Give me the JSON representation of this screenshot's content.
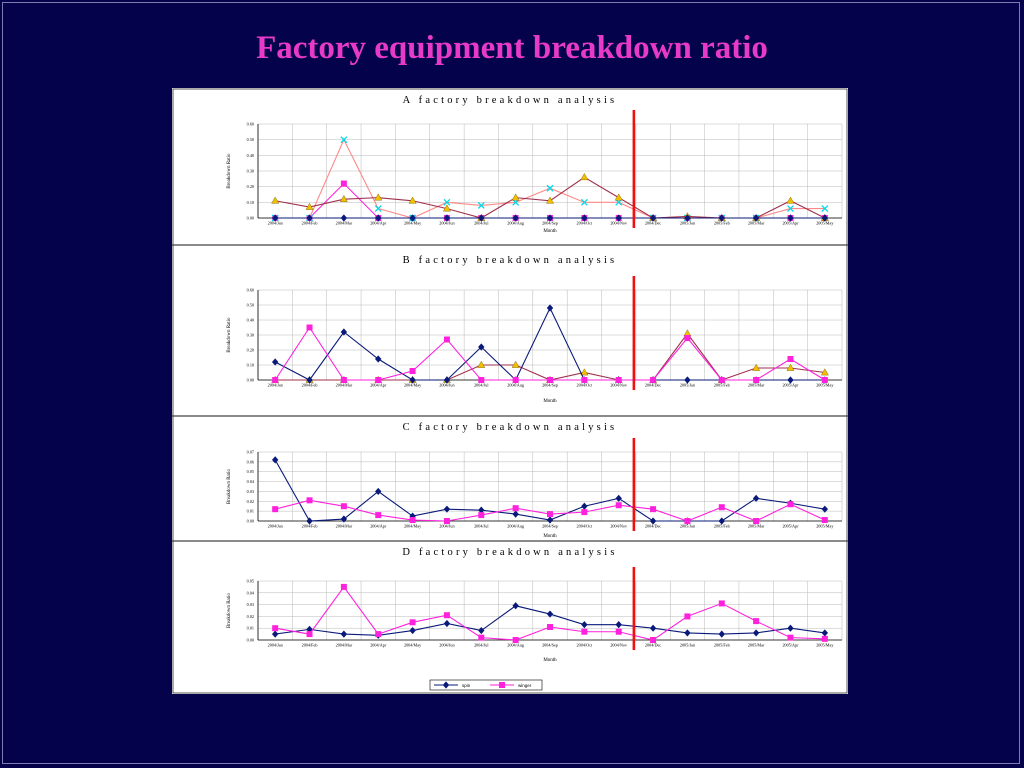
{
  "slide": {
    "title": "Factory equipment breakdown ratio",
    "background": "#04024a",
    "title_color": "#e83ac8",
    "divider_color": "#ee1111"
  },
  "legend": {
    "entries": [
      {
        "label": "spin",
        "color": "#0a1a7a"
      },
      {
        "label": "winger",
        "color": "#ff22dd"
      }
    ]
  },
  "chart_data": [
    {
      "type": "line",
      "title": "A factory breakdown analysis",
      "xlabel": "Month",
      "ylabel": "Breakdown Ratio",
      "ylim": [
        0,
        0.6
      ],
      "yticks": [
        "0.00",
        "0.10",
        "0.20",
        "0.30",
        "0.40",
        "0.50",
        "0.60"
      ],
      "grid": true,
      "categories": [
        "2004/Jan",
        "2004/Feb",
        "2004/Mar",
        "2004/Apr",
        "2004/May",
        "2004/Jun",
        "2004/Jul",
        "2004/Aug",
        "2004/Sep",
        "2004/Oct",
        "2004/Nov",
        "2004/Dec",
        "2005/Jan",
        "2005/Feb",
        "2005/Mar",
        "2005/Apr",
        "2005/May"
      ],
      "divider_after_index": 10,
      "series": [
        {
          "color": "#ff22dd",
          "marker": "square",
          "values": [
            0.0,
            0.0,
            0.22,
            0.0,
            0.0,
            0.0,
            0.0,
            0.0,
            0.0,
            0.0,
            0.0,
            0.0,
            0.0,
            0.0,
            0.0,
            0.0,
            0.0
          ]
        },
        {
          "color": "#00d8e8",
          "marker": "x",
          "line_color": "#ff8888",
          "values": [
            0.0,
            0.0,
            0.5,
            0.06,
            0.0,
            0.1,
            0.08,
            0.1,
            0.19,
            0.1,
            0.1,
            0.0,
            0.0,
            0.0,
            0.0,
            0.06,
            0.06
          ]
        },
        {
          "color": "#f0c000",
          "marker": "triangle",
          "line_color": "#a0304a",
          "values": [
            0.11,
            0.07,
            0.12,
            0.13,
            0.11,
            0.06,
            0.0,
            0.13,
            0.11,
            0.26,
            0.13,
            0.0,
            0.01,
            0.0,
            0.0,
            0.11,
            0.0
          ]
        },
        {
          "color": "#0a1a7a",
          "marker": "diamond",
          "values": [
            0.0,
            0.0,
            0.0,
            0.0,
            0.0,
            0.0,
            0.0,
            0.0,
            0.0,
            0.0,
            0.0,
            0.0,
            0.0,
            0.0,
            0.0,
            0.0,
            0.0
          ]
        }
      ]
    },
    {
      "type": "line",
      "title": "B factory breakdown analysis",
      "xlabel": "Month",
      "ylabel": "Breakdown Ratio",
      "ylim": [
        0,
        0.6
      ],
      "yticks": [
        "0.00",
        "0.10",
        "0.20",
        "0.30",
        "0.40",
        "0.50",
        "0.60"
      ],
      "grid": true,
      "categories": [
        "2004/Jan",
        "2004/Feb",
        "2004/Mar",
        "2004/Apr",
        "2004/May",
        "2004/Jun",
        "2004/Jul",
        "2004/Aug",
        "2004/Sep",
        "2004/Oct",
        "2004/Nov",
        "2004/Dec",
        "2005/Jan",
        "2005/Feb",
        "2005/Mar",
        "2005/Apr",
        "2005/May"
      ],
      "divider_after_index": 10,
      "series": [
        {
          "color": "#f0c000",
          "marker": "triangle",
          "line_color": "#a0304a",
          "values": [
            0.0,
            0.0,
            0.0,
            0.0,
            0.0,
            0.0,
            0.1,
            0.1,
            0.0,
            0.05,
            0.0,
            0.0,
            0.31,
            0.0,
            0.08,
            0.08,
            0.05
          ]
        },
        {
          "color": "#0a1a7a",
          "marker": "diamond",
          "values": [
            0.12,
            0.0,
            0.32,
            0.14,
            0.0,
            0.0,
            0.22,
            0.0,
            0.48,
            0.0,
            0.0,
            0.0,
            0.0,
            0.0,
            0.0,
            0.0,
            0.0
          ]
        },
        {
          "color": "#ff22dd",
          "marker": "square",
          "values": [
            0.0,
            0.35,
            0.0,
            0.0,
            0.06,
            0.27,
            0.0,
            0.0,
            0.0,
            0.0,
            0.0,
            0.0,
            0.28,
            0.0,
            0.0,
            0.14,
            0.0
          ]
        }
      ]
    },
    {
      "type": "line",
      "title": "C factory breakdown analysis",
      "xlabel": "Month",
      "ylabel": "Breakdown Ratio",
      "ylim": [
        0,
        0.07
      ],
      "yticks": [
        "0.00",
        "0.01",
        "0.02",
        "0.03",
        "0.04",
        "0.05",
        "0.06",
        "0.07"
      ],
      "grid": true,
      "categories": [
        "2004/Jan",
        "2004/Feb",
        "2004/Mar",
        "2004/Apr",
        "2004/May",
        "2004/Jun",
        "2004/Jul",
        "2004/Aug",
        "2004/Sep",
        "2004/Oct",
        "2004/Nov",
        "2004/Dec",
        "2005/Jan",
        "2005/Feb",
        "2005/Mar",
        "2005/Apr",
        "2005/May"
      ],
      "divider_after_index": 10,
      "series": [
        {
          "color": "#0a1a7a",
          "marker": "diamond",
          "values": [
            0.062,
            0.0,
            0.002,
            0.03,
            0.005,
            0.012,
            0.011,
            0.007,
            0.001,
            0.015,
            0.023,
            0.0,
            0.0,
            0.0,
            0.023,
            0.018,
            0.012
          ]
        },
        {
          "color": "#ff22dd",
          "marker": "square",
          "values": [
            0.012,
            0.021,
            0.015,
            0.006,
            0.001,
            0.0,
            0.006,
            0.013,
            0.007,
            0.009,
            0.016,
            0.012,
            0.0,
            0.014,
            0.0,
            0.017,
            0.001
          ]
        }
      ]
    },
    {
      "type": "line",
      "title": "D factory breakdown analysis",
      "xlabel": "Month",
      "ylabel": "Breakdown Ratio",
      "ylim": [
        0,
        0.05
      ],
      "yticks": [
        "0.00",
        "0.01",
        "0.02",
        "0.03",
        "0.04",
        "0.05"
      ],
      "grid": true,
      "categories": [
        "2004/Jan",
        "2004/Feb",
        "2004/Mar",
        "2004/Apr",
        "2004/May",
        "2004/Jun",
        "2004/Jul",
        "2004/Aug",
        "2004/Sep",
        "2004/Oct",
        "2004/Nov",
        "2004/Dec",
        "2005/Jan",
        "2005/Feb",
        "2005/Mar",
        "2005/Apr",
        "2005/May"
      ],
      "divider_after_index": 10,
      "series": [
        {
          "name": "spin",
          "color": "#0a1a7a",
          "marker": "diamond",
          "values": [
            0.005,
            0.009,
            0.005,
            0.004,
            0.008,
            0.014,
            0.008,
            0.029,
            0.022,
            0.013,
            0.013,
            0.01,
            0.006,
            0.005,
            0.006,
            0.01,
            0.006
          ]
        },
        {
          "name": "winger",
          "color": "#ff22dd",
          "marker": "square",
          "values": [
            0.01,
            0.005,
            0.045,
            0.005,
            0.015,
            0.021,
            0.002,
            0.0,
            0.011,
            0.007,
            0.007,
            0.0,
            0.02,
            0.031,
            0.016,
            0.002,
            0.001
          ]
        }
      ]
    }
  ]
}
